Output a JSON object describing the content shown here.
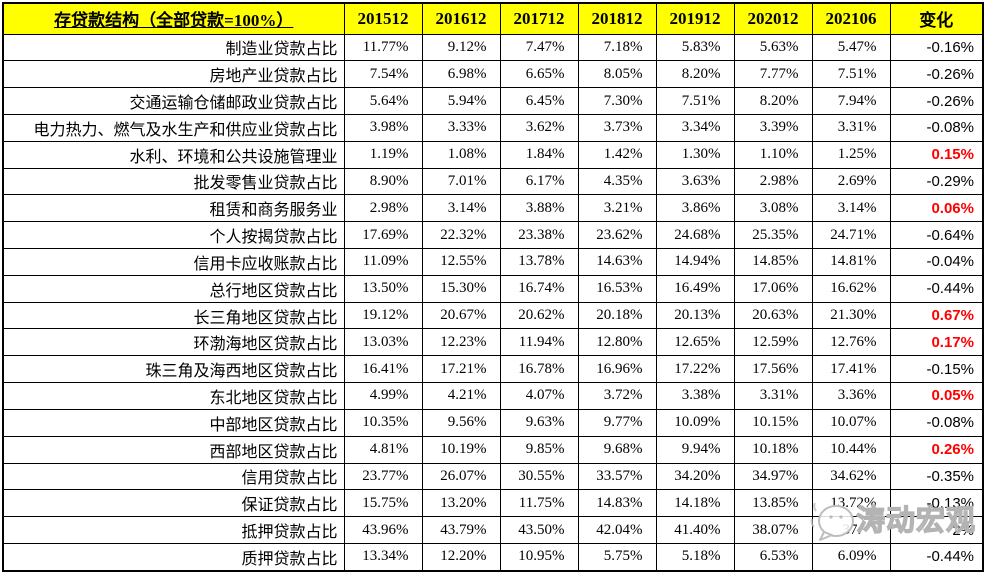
{
  "chart_data": {
    "type": "table",
    "title": "存贷款结构（全部贷款=100%）",
    "columns": [
      "201512",
      "201612",
      "201712",
      "201812",
      "201912",
      "202012",
      "202106"
    ],
    "change_column": "变化",
    "rows": [
      {
        "label": "制造业贷款占比",
        "values": [
          "11.77%",
          "9.12%",
          "7.47%",
          "7.18%",
          "5.83%",
          "5.63%",
          "5.47%"
        ],
        "change": "-0.16%",
        "change_red": false
      },
      {
        "label": "房地产业贷款占比",
        "values": [
          "7.54%",
          "6.98%",
          "6.65%",
          "8.05%",
          "8.20%",
          "7.77%",
          "7.51%"
        ],
        "change": "-0.26%",
        "change_red": false
      },
      {
        "label": "交通运输仓储邮政业贷款占比",
        "values": [
          "5.64%",
          "5.94%",
          "6.45%",
          "7.30%",
          "7.51%",
          "8.20%",
          "7.94%"
        ],
        "change": "-0.26%",
        "change_red": false
      },
      {
        "label": "电力热力、燃气及水生产和供应业贷款占比",
        "values": [
          "3.98%",
          "3.33%",
          "3.62%",
          "3.73%",
          "3.34%",
          "3.39%",
          "3.31%"
        ],
        "change": "-0.08%",
        "change_red": false
      },
      {
        "label": "水利、环境和公共设施管理业",
        "values": [
          "1.19%",
          "1.08%",
          "1.84%",
          "1.42%",
          "1.30%",
          "1.10%",
          "1.25%"
        ],
        "change": "0.15%",
        "change_red": true
      },
      {
        "label": "批发零售业贷款占比",
        "values": [
          "8.90%",
          "7.01%",
          "6.17%",
          "4.35%",
          "3.63%",
          "2.98%",
          "2.69%"
        ],
        "change": "-0.29%",
        "change_red": false
      },
      {
        "label": "租赁和商务服务业",
        "values": [
          "2.98%",
          "3.14%",
          "3.88%",
          "3.21%",
          "3.86%",
          "3.08%",
          "3.14%"
        ],
        "change": "0.06%",
        "change_red": true
      },
      {
        "label": "个人按揭贷款占比",
        "values": [
          "17.69%",
          "22.32%",
          "23.38%",
          "23.62%",
          "24.68%",
          "25.35%",
          "24.71%"
        ],
        "change": "-0.64%",
        "change_red": false
      },
      {
        "label": "信用卡应收账款占比",
        "values": [
          "11.09%",
          "12.55%",
          "13.78%",
          "14.63%",
          "14.94%",
          "14.85%",
          "14.81%"
        ],
        "change": "-0.04%",
        "change_red": false
      },
      {
        "label": "总行地区贷款占比",
        "values": [
          "13.50%",
          "15.30%",
          "16.74%",
          "16.53%",
          "16.49%",
          "17.06%",
          "16.62%"
        ],
        "change": "-0.44%",
        "change_red": false
      },
      {
        "label": "长三角地区贷款占比",
        "values": [
          "19.12%",
          "20.67%",
          "20.62%",
          "20.18%",
          "20.13%",
          "20.63%",
          "21.30%"
        ],
        "change": "0.67%",
        "change_red": true
      },
      {
        "label": "环渤海地区贷款占比",
        "values": [
          "13.03%",
          "12.23%",
          "11.94%",
          "12.80%",
          "12.65%",
          "12.59%",
          "12.76%"
        ],
        "change": "0.17%",
        "change_red": true
      },
      {
        "label": "珠三角及海西地区贷款占比",
        "values": [
          "16.41%",
          "17.21%",
          "16.78%",
          "16.96%",
          "17.22%",
          "17.56%",
          "17.41%"
        ],
        "change": "-0.15%",
        "change_red": false
      },
      {
        "label": "东北地区贷款占比",
        "values": [
          "4.99%",
          "4.21%",
          "4.07%",
          "3.72%",
          "3.38%",
          "3.31%",
          "3.36%"
        ],
        "change": "0.05%",
        "change_red": true
      },
      {
        "label": "中部地区贷款占比",
        "values": [
          "10.35%",
          "9.56%",
          "9.63%",
          "9.77%",
          "10.09%",
          "10.15%",
          "10.07%"
        ],
        "change": "-0.08%",
        "change_red": false
      },
      {
        "label": "西部地区贷款占比",
        "values": [
          "4.81%",
          "10.19%",
          "9.85%",
          "9.68%",
          "9.94%",
          "10.18%",
          "10.44%"
        ],
        "change": "0.26%",
        "change_red": true
      },
      {
        "label": "信用贷款占比",
        "values": [
          "23.77%",
          "26.07%",
          "30.55%",
          "33.57%",
          "34.20%",
          "34.97%",
          "34.62%"
        ],
        "change": "-0.35%",
        "change_red": false
      },
      {
        "label": "保证贷款占比",
        "values": [
          "15.75%",
          "13.20%",
          "11.75%",
          "14.83%",
          "14.18%",
          "13.85%",
          "13.72%"
        ],
        "change": "-0.13%",
        "change_red": false
      },
      {
        "label": "抵押贷款占比",
        "values": [
          "43.96%",
          "43.79%",
          "43.50%",
          "42.04%",
          "41.40%",
          "38.07%",
          "37."
        ],
        "change": "2%",
        "change_red": false,
        "obscured": true
      },
      {
        "label": "质押贷款占比",
        "values": [
          "13.34%",
          "12.20%",
          "10.95%",
          "5.75%",
          "5.18%",
          "6.53%",
          "6.09%"
        ],
        "change": "-0.44%",
        "change_red": false
      }
    ]
  },
  "watermark": {
    "text": "涛动宏观",
    "icon": "chat-bubble-logo-icon"
  },
  "colors": {
    "header_bg": "#FFFF00",
    "positive_change": "#FF0000",
    "negative_change": "#000000",
    "grid": "#000000"
  }
}
